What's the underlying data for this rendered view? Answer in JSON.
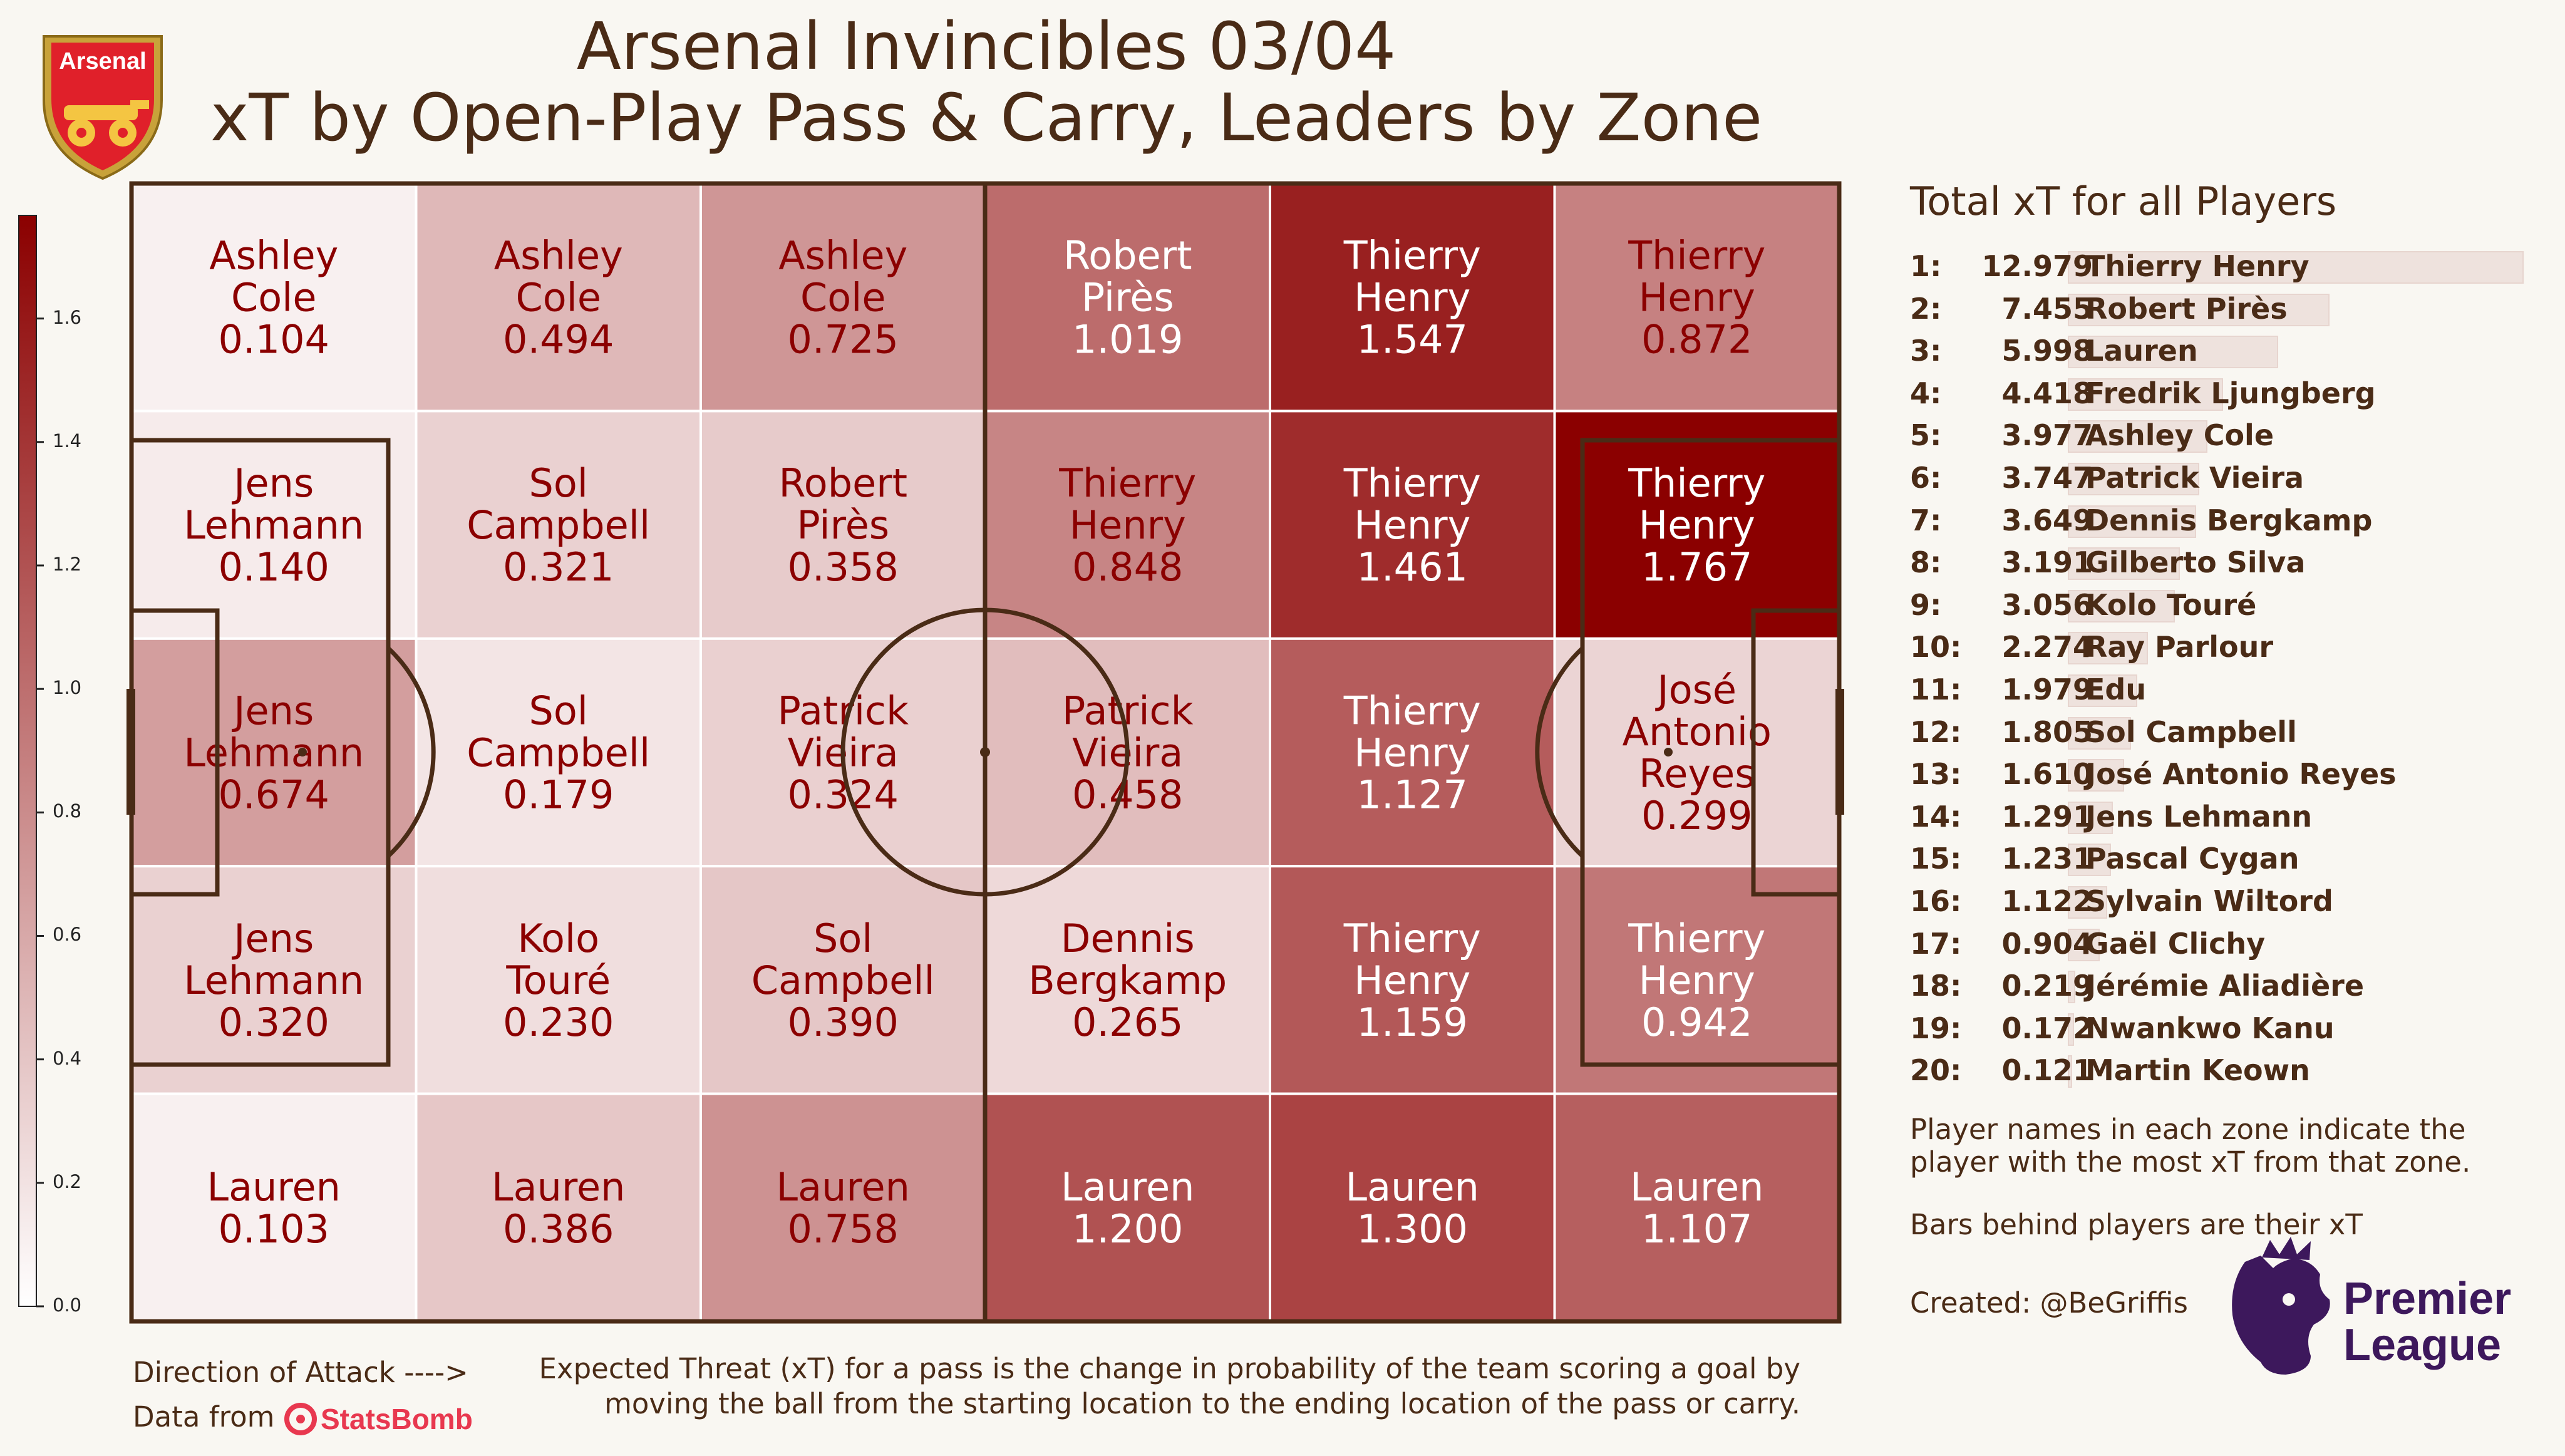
{
  "title_line1": "Arsenal Invincibles 03/04",
  "title_line2": "xT by Open-Play Pass & Carry, Leaders by Zone",
  "badge_text": "Arsenal",
  "colorbar": {
    "min": 0.0,
    "max": 1.767,
    "ticks": [
      "0.0",
      "0.2",
      "0.4",
      "0.6",
      "0.8",
      "1.0",
      "1.2",
      "1.4",
      "1.6"
    ]
  },
  "chart_data": {
    "type": "heatmap",
    "columns": 6,
    "rows": 5,
    "cells": [
      [
        {
          "name": "Ashley Cole",
          "value": 0.104
        },
        {
          "name": "Ashley Cole",
          "value": 0.494
        },
        {
          "name": "Ashley Cole",
          "value": 0.725
        },
        {
          "name": "Robert Pirès",
          "value": 1.019
        },
        {
          "name": "Thierry Henry",
          "value": 1.547
        },
        {
          "name": "Thierry Henry",
          "value": 0.872
        }
      ],
      [
        {
          "name": "Jens Lehmann",
          "value": 0.14
        },
        {
          "name": "Sol Campbell",
          "value": 0.321
        },
        {
          "name": "Robert Pirès",
          "value": 0.358
        },
        {
          "name": "Thierry Henry",
          "value": 0.848
        },
        {
          "name": "Thierry Henry",
          "value": 1.461
        },
        {
          "name": "Thierry Henry",
          "value": 1.767
        }
      ],
      [
        {
          "name": "Jens Lehmann",
          "value": 0.674
        },
        {
          "name": "Sol Campbell",
          "value": 0.179
        },
        {
          "name": "Patrick Vieira",
          "value": 0.324
        },
        {
          "name": "Patrick Vieira",
          "value": 0.458
        },
        {
          "name": "Thierry Henry",
          "value": 1.127
        },
        {
          "name": "José Antonio Reyes",
          "value": 0.299
        }
      ],
      [
        {
          "name": "Jens Lehmann",
          "value": 0.32
        },
        {
          "name": "Kolo Touré",
          "value": 0.23
        },
        {
          "name": "Sol Campbell",
          "value": 0.39
        },
        {
          "name": "Dennis Bergkamp",
          "value": 0.265
        },
        {
          "name": "Thierry Henry",
          "value": 1.159
        },
        {
          "name": "Thierry Henry",
          "value": 0.942
        }
      ],
      [
        {
          "name": "Lauren",
          "value": 0.103
        },
        {
          "name": "Lauren",
          "value": 0.386
        },
        {
          "name": "Lauren",
          "value": 0.758
        },
        {
          "name": "Lauren",
          "value": 1.2
        },
        {
          "name": "Lauren",
          "value": 1.3
        },
        {
          "name": "Lauren",
          "value": 1.107
        }
      ]
    ]
  },
  "leaderboard": {
    "title": "Total xT for all Players",
    "max_value": 12.979,
    "items": [
      {
        "rank": "1:",
        "value": 12.979,
        "name": "Thierry Henry"
      },
      {
        "rank": "2:",
        "value": 7.455,
        "name": "Robert Pirès"
      },
      {
        "rank": "3:",
        "value": 5.998,
        "name": "Lauren"
      },
      {
        "rank": "4:",
        "value": 4.418,
        "name": "Fredrik Ljungberg"
      },
      {
        "rank": "5:",
        "value": 3.977,
        "name": "Ashley Cole"
      },
      {
        "rank": "6:",
        "value": 3.747,
        "name": "Patrick Vieira"
      },
      {
        "rank": "7:",
        "value": 3.649,
        "name": "Dennis Bergkamp"
      },
      {
        "rank": "8:",
        "value": 3.191,
        "name": "Gilberto Silva"
      },
      {
        "rank": "9:",
        "value": 3.056,
        "name": "Kolo Touré"
      },
      {
        "rank": "10:",
        "value": 2.274,
        "name": "Ray Parlour"
      },
      {
        "rank": "11:",
        "value": 1.979,
        "name": "Edu"
      },
      {
        "rank": "12:",
        "value": 1.805,
        "name": "Sol Campbell"
      },
      {
        "rank": "13:",
        "value": 1.61,
        "name": "José Antonio Reyes"
      },
      {
        "rank": "14:",
        "value": 1.291,
        "name": "Jens Lehmann"
      },
      {
        "rank": "15:",
        "value": 1.231,
        "name": "Pascal Cygan"
      },
      {
        "rank": "16:",
        "value": 1.122,
        "name": "Sylvain Wiltord"
      },
      {
        "rank": "17:",
        "value": 0.904,
        "name": "Gaël Clichy"
      },
      {
        "rank": "18:",
        "value": 0.219,
        "name": "Jérémie Aliadière"
      },
      {
        "rank": "19:",
        "value": 0.172,
        "name": "Nwankwo Kanu"
      },
      {
        "rank": "20:",
        "value": 0.121,
        "name": "Martin Keown"
      }
    ]
  },
  "notes": {
    "line1a": "Player names in each zone indicate the",
    "line1b": "player with the most xT from that zone.",
    "line2": "Bars behind players are their xT",
    "created": "Created: @BeGriffis"
  },
  "premier_league": {
    "line1": "Premier",
    "line2": "League"
  },
  "footer": {
    "direction": "Direction of Attack ---->",
    "data_from": "Data from",
    "statsbomb": "StatsBomb",
    "xt_line1": "Expected Threat (xT) for a pass is the change in probability of the team scoring a goal by",
    "xt_line2": "moving the ball from the starting location to the ending location of the pass or carry."
  },
  "colors": {
    "max": "#8b0000",
    "min": "#ffffff",
    "line": "#4a2b16",
    "background": "#f9f7f2"
  }
}
